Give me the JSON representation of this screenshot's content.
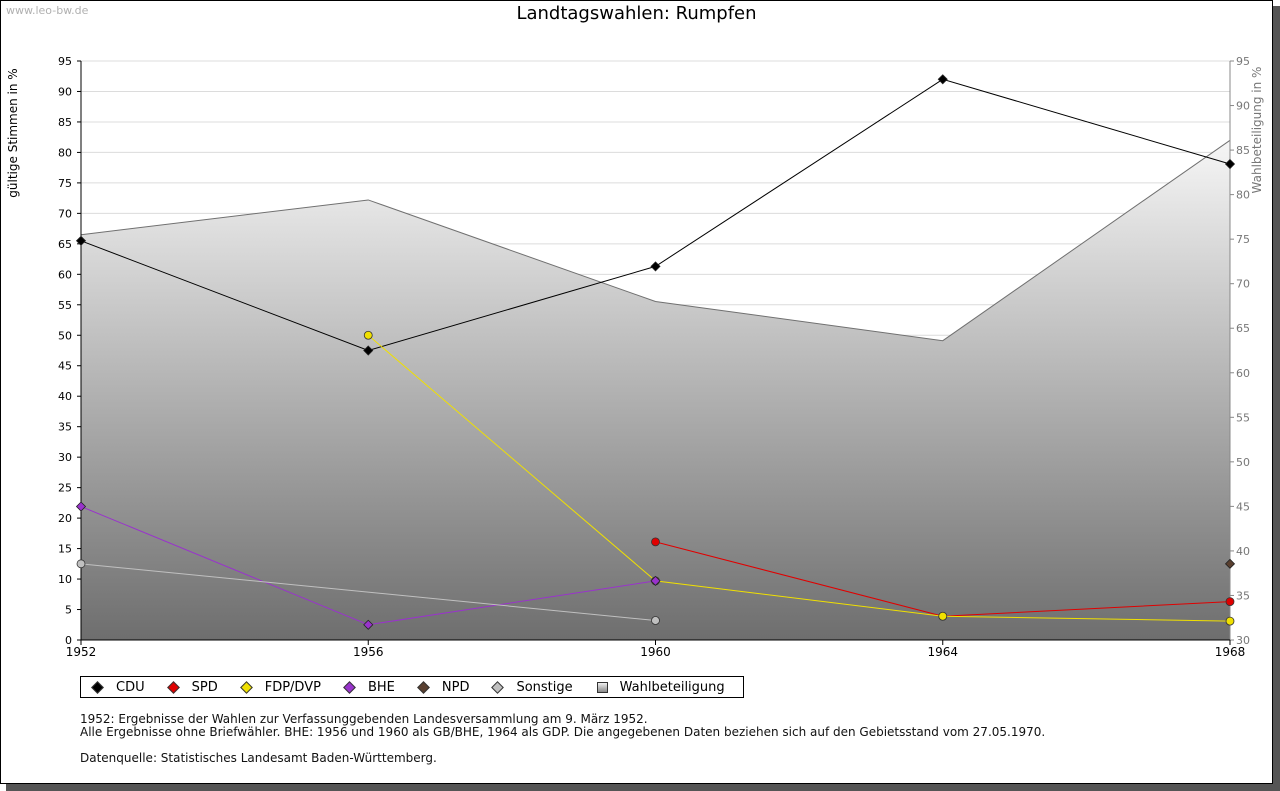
{
  "watermark": "www.leo-bw.de",
  "chart_data": {
    "type": "line",
    "title": "Landtagswahlen: Rumpfen",
    "ylabel_left": "gültige Stimmen in %",
    "ylabel_right": "Wahlbeteiligung in %",
    "x": [
      "1952",
      "1956",
      "1960",
      "1964",
      "1968"
    ],
    "ylim_left": [
      0,
      95
    ],
    "yticks_left": [
      0,
      5,
      10,
      15,
      20,
      25,
      30,
      35,
      40,
      45,
      50,
      55,
      60,
      65,
      70,
      75,
      80,
      85,
      90,
      95
    ],
    "ylim_right": [
      30,
      95
    ],
    "yticks_right": [
      30,
      35,
      40,
      45,
      50,
      55,
      60,
      65,
      70,
      75,
      80,
      85,
      90,
      95
    ],
    "series": [
      {
        "name": "CDU",
        "color": "#000000",
        "values": [
          65.5,
          47.5,
          61.3,
          92.0,
          78.1
        ]
      },
      {
        "name": "SPD",
        "color": "#e00000",
        "values": [
          null,
          null,
          16.1,
          3.9,
          6.3
        ]
      },
      {
        "name": "FDP/DVP",
        "color": "#f0e000",
        "values": [
          null,
          50.0,
          9.7,
          3.9,
          3.1
        ]
      },
      {
        "name": "BHE",
        "color": "#9933cc",
        "values": [
          21.9,
          2.5,
          9.7,
          null,
          null
        ]
      },
      {
        "name": "NPD",
        "color": "#5a4030",
        "values": [
          null,
          null,
          null,
          null,
          12.5
        ]
      },
      {
        "name": "Sonstige",
        "color": "#c0c0c0",
        "values": [
          12.5,
          null,
          3.2,
          null,
          null
        ]
      }
    ],
    "turnout": {
      "name": "Wahlbeteiligung",
      "color": "#808080",
      "values": [
        75.5,
        79.4,
        68.0,
        63.6,
        86.1
      ]
    }
  },
  "legend": [
    "CDU",
    "SPD",
    "FDP/DVP",
    "BHE",
    "NPD",
    "Sonstige",
    "Wahlbeteiligung"
  ],
  "notes": {
    "line1": "1952: Ergebnisse der Wahlen zur Verfassunggebenden Landesversammlung am 9. März 1952.",
    "line2": "Alle Ergebnisse ohne Briefwähler. BHE: 1956 und 1960 als GB/BHE, 1964 als GDP. Die angegebenen Daten beziehen sich auf den Gebietsstand vom 27.05.1970.",
    "source": "Datenquelle: Statistisches Landesamt Baden-Württemberg."
  }
}
